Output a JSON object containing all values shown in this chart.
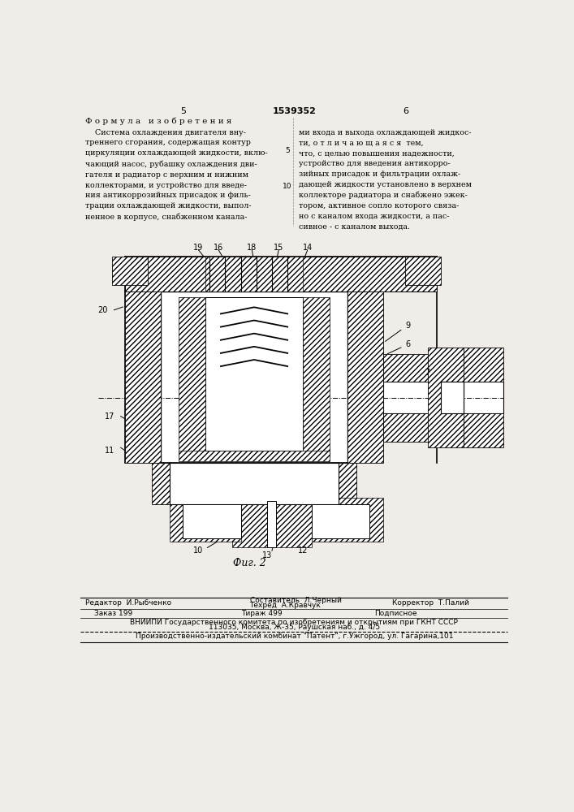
{
  "bg_color": "#f0ede8",
  "title_number": "1539352",
  "page_left": "5",
  "page_right": "6",
  "formula_header": "Ф о р м у л а   и з о б р е т е н и я",
  "text_left": "    Система охлаждения двигателя вну-\nтреннего сгорания, содержащая контур\nциркуляции охлаждающей жидкости, вклю-\nчающий насос, рубашку охлаждения дви-\nгателя и радиатор с верхним и нижним\nколлекторами, и устройство для введе-\nния антикоррозийных присадок и филь-\nтрации охлаждающей жидкости, выпол-\nненное в корпусе, снабженном канала-",
  "text_right": "ми входа и выхода охлаждающей жидкос-\nти, о т л и ч а ю щ а я с я  тем,\nчто, с целью повышения надежности,\nустройство для введения антикорро-\nзийных присадок и фильтрации охлаж-\nдающей жидкости установлено в верхнем\nколлекторе радиатора и снабжено эжек-\nтором, активное сопло которого связа-\nно с каналом входа жидкости, а пас-\nсивное - с каналом выхода.",
  "fig_caption": "Фиг. 2",
  "footer_editor": "Редактор  И.Рыбченко",
  "footer_composer": "Составитель  Л.Черный",
  "footer_tech": "Техред  А.Кравчук",
  "footer_corrector": "Корректор  Т.Палий",
  "footer_order": "Заказ 199",
  "footer_circulation": "Тираж 499",
  "footer_subscription": "Подписное",
  "footer_vniip1": "ВНИИПИ Государственного комитета по изобретениям и открытиям при ГКНТ СССР",
  "footer_vniip2": "113035, Москва, Ж-35, Раушская наб., д. 4/5",
  "footer_publisher": "Производственно-издательский комбинат \"Патент\", г.Ужгород, ул. Гагарина,101"
}
